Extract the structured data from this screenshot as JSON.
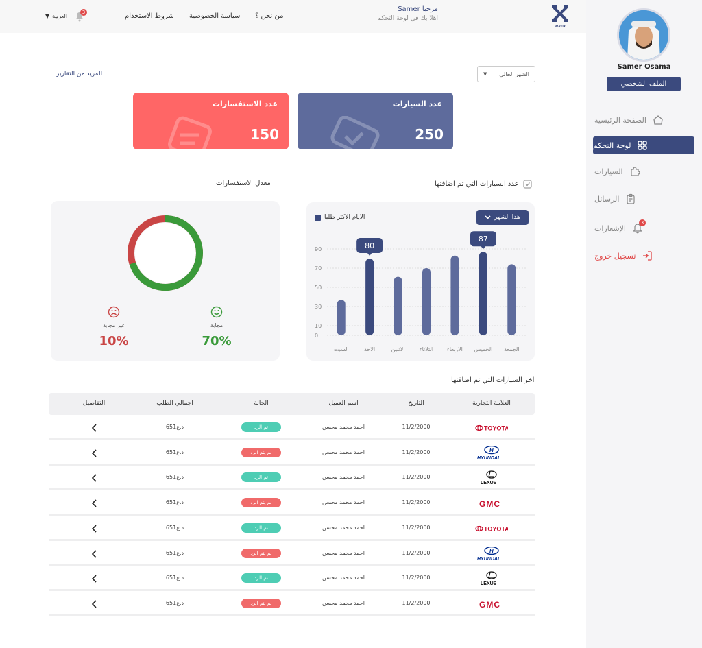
{
  "header": {
    "greeting": "مرحبا Samer",
    "subtitle": "اهلا بك في لوحة التحكم",
    "links": [
      "من نحن ؟",
      "سياسة الخصوصية",
      "شروط الاستخدام"
    ],
    "language": "العربية",
    "notification_count": "3",
    "logo_text": "PARTIX"
  },
  "sidebar": {
    "user_name": "Samer Osama",
    "profile_button": "الملف الشخصي",
    "items": [
      {
        "label": "الصفحة الرئيسية",
        "icon": "home-icon"
      },
      {
        "label": "لوحة التحكم",
        "icon": "grid-icon",
        "active": true
      },
      {
        "label": "السيارات",
        "icon": "puzzle-icon"
      },
      {
        "label": "الرسائل",
        "icon": "clipboard-icon"
      },
      {
        "label": "الإشعارات",
        "icon": "bell-icon",
        "badge": "3"
      },
      {
        "label": "تسجيل خروج",
        "icon": "logout-icon"
      }
    ]
  },
  "controls": {
    "period": "الشهر الحالي",
    "more_reports": "المزيد من التقارير"
  },
  "stats": {
    "cars": {
      "title": "عدد السيارات",
      "value": "250"
    },
    "inquiries": {
      "title": "عدد الاستفسارات",
      "value": "150"
    }
  },
  "sections": {
    "cars_added": "عدد السيارات التي تم اضافتها",
    "inquiry_rate": "معدل الاستفسارات",
    "latest_cars": "اخر السيارات التي تم اضافتها"
  },
  "chart_controls": {
    "month_button": "هذا الشهر",
    "legend": "الايام الاكثر طلبا"
  },
  "chart_data": {
    "type": "bar",
    "categories": [
      "الجمعة",
      "الخميس",
      "الاربعاء",
      "الثلاثاء",
      "الاثنين",
      "الاحد",
      "السبت"
    ],
    "values": [
      74,
      87,
      83,
      70,
      61,
      80,
      37
    ],
    "highlight": [
      1,
      5
    ],
    "callouts": {
      "1": "87",
      "5": "80"
    },
    "yticks": [
      "0",
      "10",
      "30",
      "50",
      "70",
      "90"
    ],
    "ylim": [
      0,
      90
    ],
    "grid": true,
    "colors": {
      "bar": "#5e6b9c",
      "highlight": "#3b4a7e"
    }
  },
  "ring": {
    "answered_pct": 70,
    "answered_label": "مجابة",
    "answered_value": "70%",
    "unanswered_label": "غير مجابة",
    "unanswered_value": "10%",
    "colors": {
      "answered": "#3a9a3a",
      "unanswered": "#c94545"
    }
  },
  "table": {
    "headers": [
      "العلامة التجارية",
      "التاريخ",
      "اسم العميل",
      "الحالة",
      "اجمالي الطلب",
      "التفاصيل"
    ],
    "rows": [
      {
        "brand": "TOYOTA",
        "date": "11/2/2000",
        "client": "احمد محمد محسن",
        "status": "تم الرد",
        "status_type": "ok",
        "total": "651د.ع"
      },
      {
        "brand": "HYUNDAI",
        "date": "11/2/2000",
        "client": "احمد محمد محسن",
        "status": "لم يتم الرد",
        "status_type": "no",
        "total": "651د.ع"
      },
      {
        "brand": "LEXUS",
        "date": "11/2/2000",
        "client": "احمد محمد محسن",
        "status": "تم الرد",
        "status_type": "ok",
        "total": "651د.ع"
      },
      {
        "brand": "GMC",
        "date": "11/2/2000",
        "client": "احمد محمد محسن",
        "status": "لم يتم الرد",
        "status_type": "no",
        "total": "651د.ع"
      },
      {
        "brand": "TOYOTA",
        "date": "11/2/2000",
        "client": "احمد محمد محسن",
        "status": "تم الرد",
        "status_type": "ok",
        "total": "651د.ع"
      },
      {
        "brand": "HYUNDAI",
        "date": "11/2/2000",
        "client": "احمد محمد محسن",
        "status": "لم يتم الرد",
        "status_type": "no",
        "total": "651د.ع"
      },
      {
        "brand": "LEXUS",
        "date": "11/2/2000",
        "client": "احمد محمد محسن",
        "status": "تم الرد",
        "status_type": "ok",
        "total": "651د.ع"
      },
      {
        "brand": "GMC",
        "date": "11/2/2000",
        "client": "احمد محمد محسن",
        "status": "لم يتم الرد",
        "status_type": "no",
        "total": "651د.ع"
      }
    ]
  }
}
